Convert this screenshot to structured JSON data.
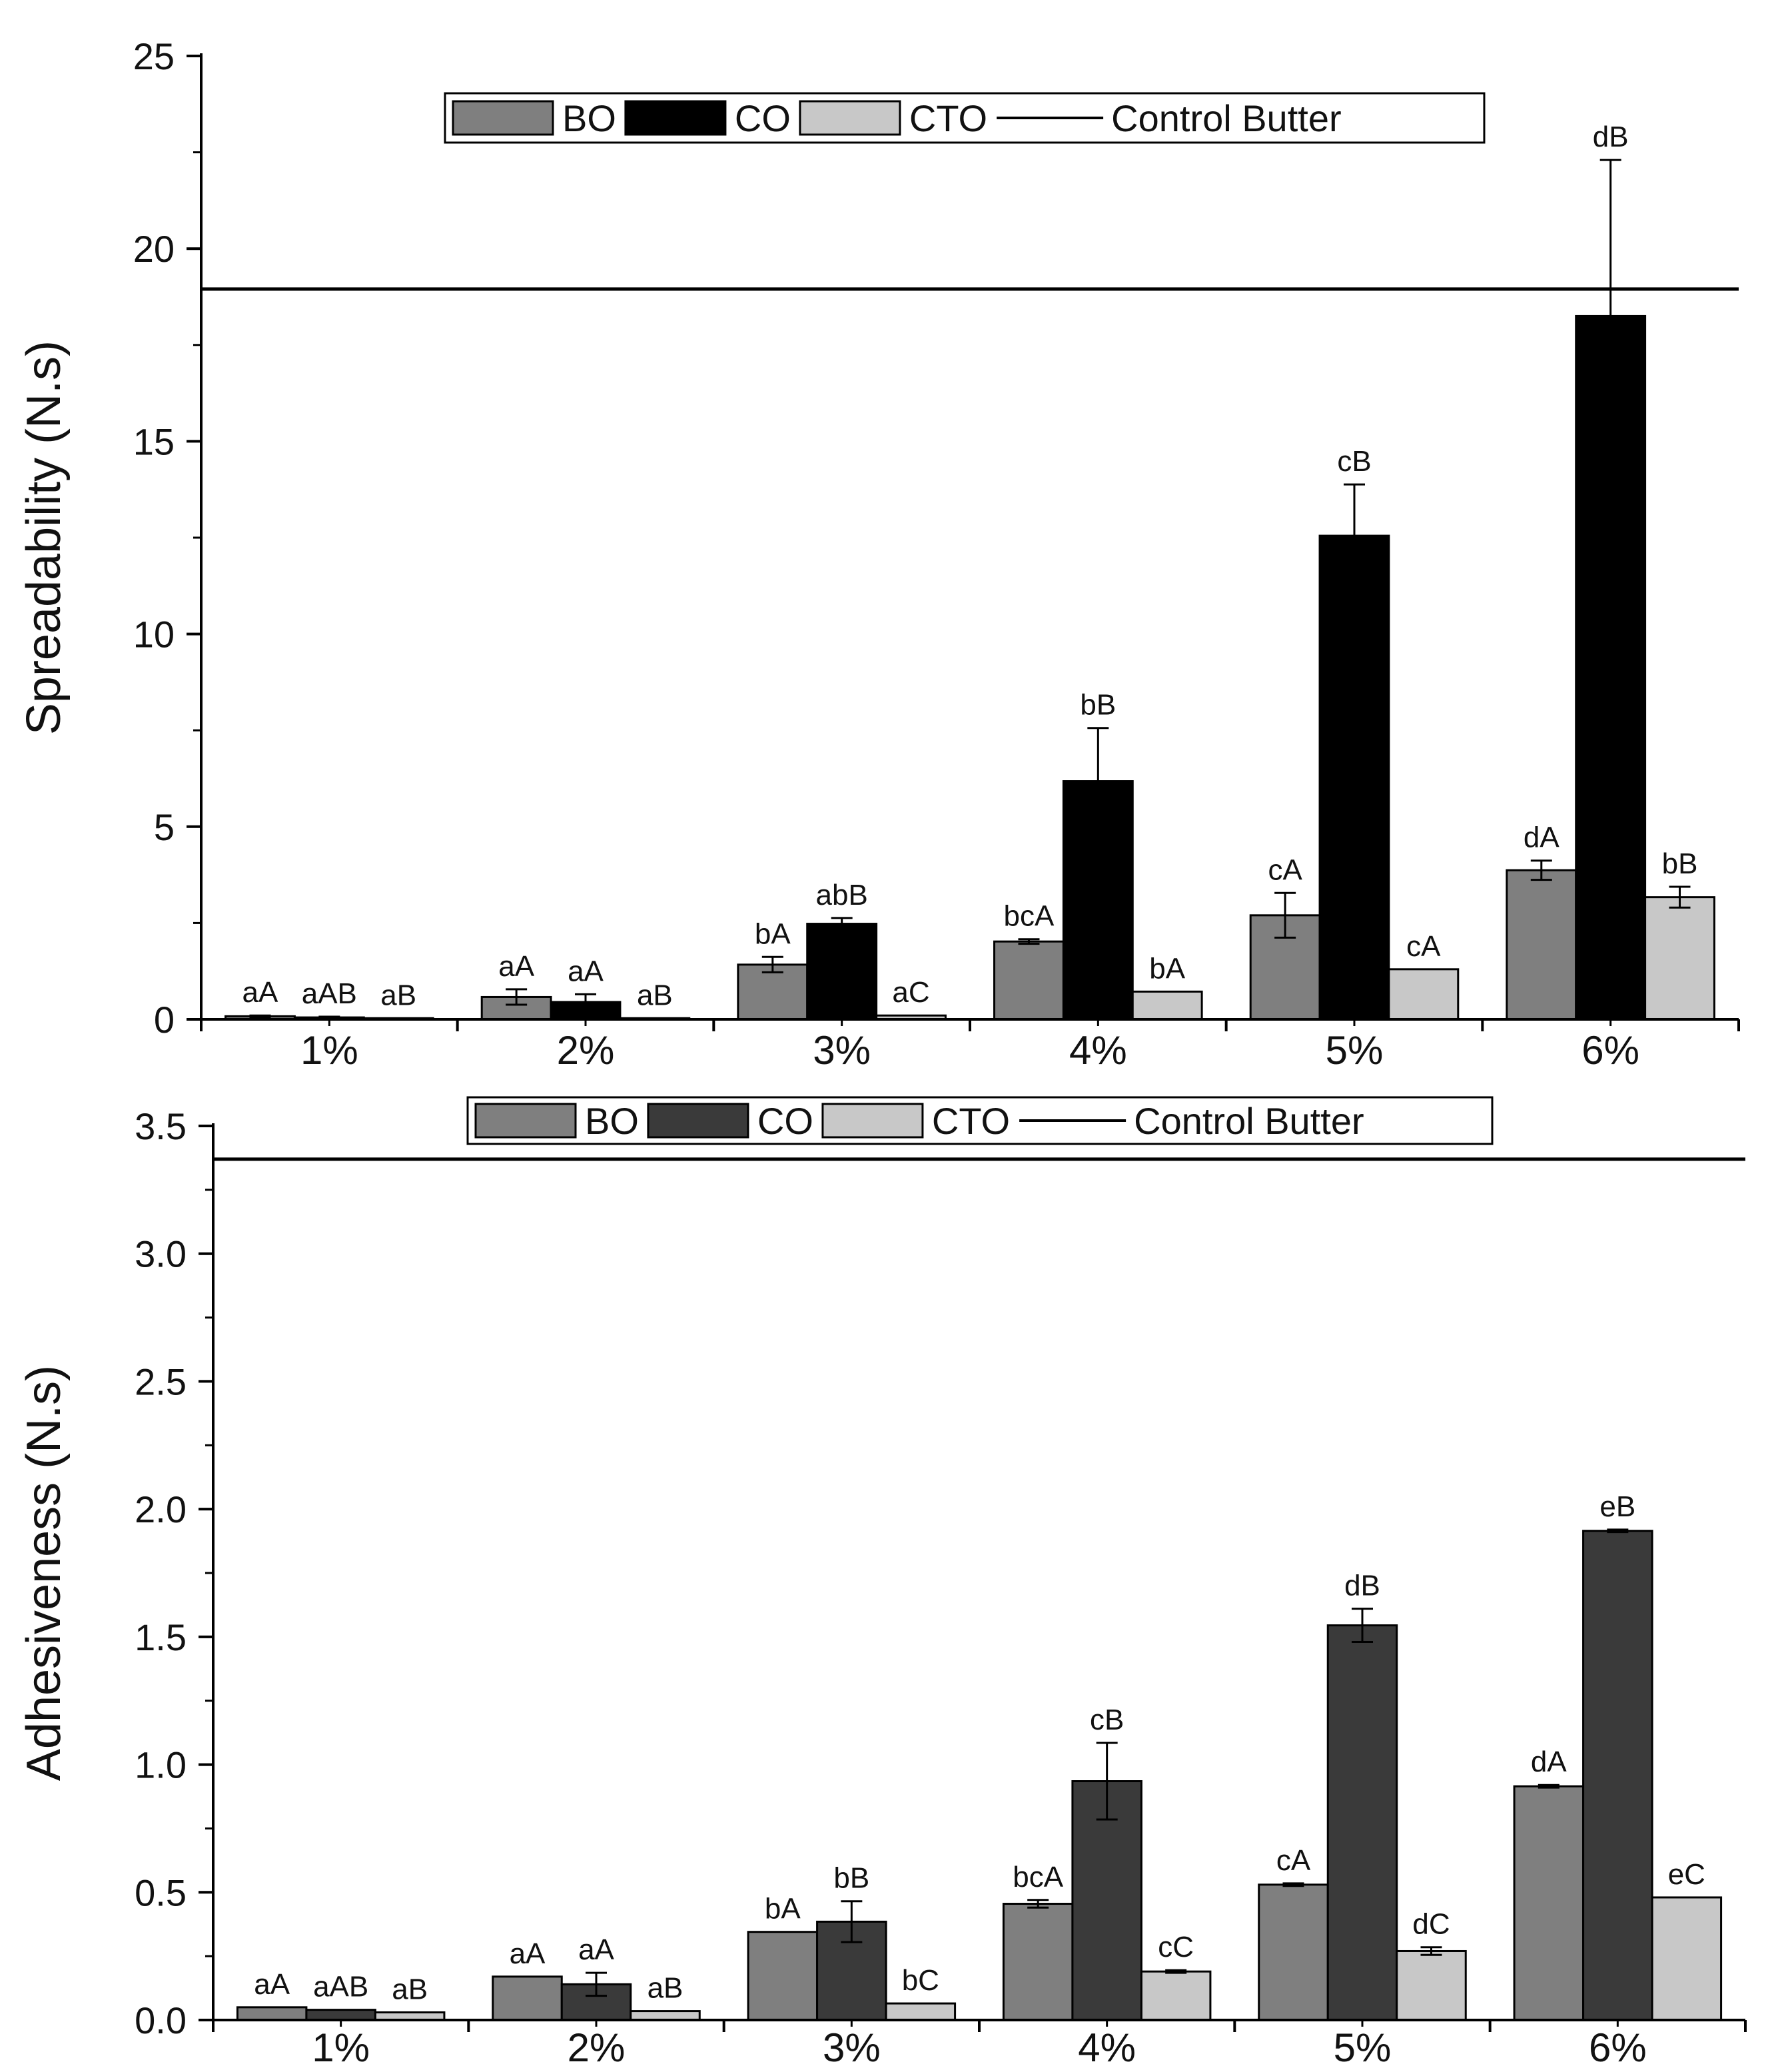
{
  "chart_data": [
    {
      "type": "bar",
      "ylabel": "Spreadability (N.s)",
      "xlabel": "",
      "ylim": [
        0,
        25
      ],
      "yticks": [
        "0",
        "5",
        "10",
        "15",
        "20",
        "25"
      ],
      "categories": [
        "1%",
        "2%",
        "3%",
        "4%",
        "5%",
        "6%"
      ],
      "series": [
        {
          "name": "BO",
          "color": "#7f7f7f",
          "values": [
            0.08,
            0.58,
            1.42,
            2.02,
            2.7,
            3.87
          ],
          "errors": [
            0.02,
            0.2,
            0.2,
            0.06,
            0.58,
            0.25
          ],
          "labels": [
            "aA",
            "aA",
            "bA",
            "bcA",
            "cA",
            "dA"
          ]
        },
        {
          "name": "CO",
          "color": "#000000",
          "values": [
            0.05,
            0.45,
            2.48,
            6.18,
            12.55,
            18.25
          ],
          "errors": [
            0.02,
            0.2,
            0.15,
            1.38,
            1.33,
            4.05
          ],
          "labels": [
            "aAB",
            "aA",
            "abB",
            "bB",
            "cB",
            "dB"
          ]
        },
        {
          "name": "CTO",
          "color": "#c8c8c8",
          "values": [
            0.03,
            0.03,
            0.1,
            0.72,
            1.3,
            3.17
          ],
          "errors": [
            0,
            0,
            0,
            0,
            0,
            0.27
          ],
          "labels": [
            "aB",
            "aB",
            "aC",
            "bA",
            "cA",
            "bB"
          ]
        }
      ],
      "control": {
        "name": "Control Butter",
        "value": 18.95
      },
      "legend": [
        "BO",
        "CO",
        "CTO",
        "Control Butter"
      ]
    },
    {
      "type": "bar",
      "ylabel": "Adhesiveness (N.s)",
      "xlabel": "",
      "ylim": [
        0,
        3.5
      ],
      "yticks": [
        "0.0",
        "0.5",
        "1.0",
        "1.5",
        "2.0",
        "2.5",
        "3.0",
        "3.5"
      ],
      "categories": [
        "1%",
        "2%",
        "3%",
        "4%",
        "5%",
        "6%"
      ],
      "series": [
        {
          "name": "BO",
          "color": "#7f7f7f",
          "values": [
            0.05,
            0.17,
            0.345,
            0.455,
            0.53,
            0.915
          ],
          "errors": [
            0,
            0,
            0,
            0.015,
            0.005,
            0.005
          ],
          "labels": [
            "aA",
            "aA",
            "bA",
            "bcA",
            "cA",
            "dA"
          ]
        },
        {
          "name": "CO",
          "color": "#3a3a3a",
          "values": [
            0.04,
            0.14,
            0.385,
            0.935,
            1.545,
            1.915
          ],
          "errors": [
            0,
            0.045,
            0.08,
            0.15,
            0.065,
            0.005
          ],
          "labels": [
            "aAB",
            "aA",
            "bB",
            "cB",
            "dB",
            "eB"
          ]
        },
        {
          "name": "CTO",
          "color": "#c8c8c8",
          "values": [
            0.03,
            0.035,
            0.065,
            0.19,
            0.27,
            0.48
          ],
          "errors": [
            0,
            0,
            0,
            0.005,
            0.015,
            0
          ],
          "labels": [
            "aB",
            "aB",
            "bC",
            "cC",
            "dC",
            "eC"
          ]
        }
      ],
      "control": {
        "name": "Control Butter",
        "value": 3.37
      },
      "legend": [
        "BO",
        "CO",
        "CTO",
        "Control Butter"
      ]
    }
  ]
}
